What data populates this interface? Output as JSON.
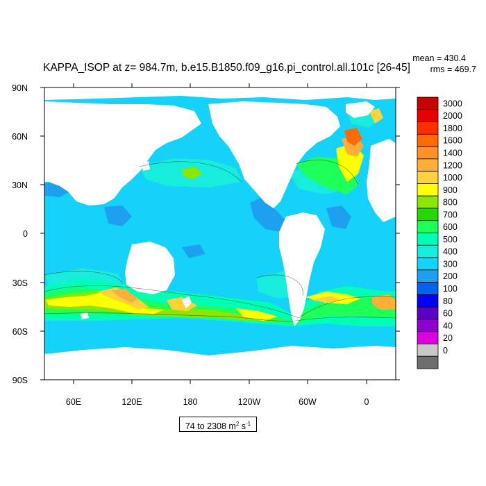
{
  "header": {
    "title": "KAPPA_ISOP at z= 984.7m, b.e15.B1850.f09_g16.pi_control.all.101c [26-45]",
    "mean_text": "mean = 430.4",
    "rms_text": "rms = 469.7"
  },
  "axes": {
    "lat_ticks": [
      "90N",
      "60N",
      "30N",
      "0",
      "30S",
      "60S",
      "90S"
    ],
    "lon_ticks": [
      "60E",
      "120E",
      "180",
      "120W",
      "60W",
      "0"
    ]
  },
  "colorbar": {
    "labels": [
      "3000",
      "2000",
      "1800",
      "1600",
      "1400",
      "1200",
      "1000",
      "900",
      "800",
      "700",
      "600",
      "500",
      "400",
      "300",
      "200",
      "100",
      "80",
      "60",
      "40",
      "20",
      "0"
    ],
    "colors": [
      "#c80000",
      "#e60000",
      "#ff2d00",
      "#ff6a00",
      "#ff9128",
      "#ffaf38",
      "#ffd23c",
      "#ffff00",
      "#8ce600",
      "#26d600",
      "#1eff5a",
      "#00ffb4",
      "#18ecdc",
      "#14d2fa",
      "#1ea0f0",
      "#0064f0",
      "#0000ff",
      "#5a00c8",
      "#8c00d2",
      "#dc00dc",
      "#c8c8c8",
      "#6e6e6e"
    ]
  },
  "range_box": {
    "prefix": "74 to 2308 m",
    "exp": "2",
    "unit_tail": " s",
    "exp2": "-1"
  },
  "colors": {
    "ocean_base": "#14d2fa",
    "land": "#ffffff"
  }
}
